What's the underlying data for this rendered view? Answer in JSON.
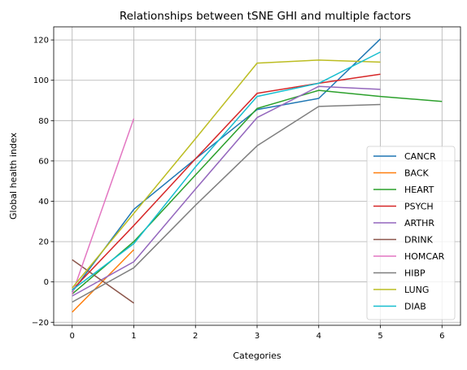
{
  "chart_data": {
    "type": "line",
    "title": "Relationships between tSNE GHI and multiple factors",
    "xlabel": "Categories",
    "ylabel": "Global health index",
    "xlim": [
      -0.3,
      6.3
    ],
    "ylim": [
      -21.5,
      126.5
    ],
    "xticks": [
      0,
      1,
      2,
      3,
      4,
      5,
      6
    ],
    "yticks": [
      -20,
      0,
      20,
      40,
      60,
      80,
      100,
      120
    ],
    "grid": true,
    "legend_position": "lower-right",
    "series": [
      {
        "name": "CANCR",
        "color": "#1f77b4",
        "x": [
          0,
          1,
          2,
          3,
          4,
          5
        ],
        "y": [
          -5,
          36,
          61,
          85.5,
          91,
          120.5
        ]
      },
      {
        "name": "BACK",
        "color": "#ff7f0e",
        "x": [
          0,
          1
        ],
        "y": [
          -15,
          16
        ]
      },
      {
        "name": "HEART",
        "color": "#2ca02c",
        "x": [
          0,
          1,
          2,
          3,
          4,
          5,
          6
        ],
        "y": [
          -6,
          20,
          53,
          86,
          95,
          92,
          89.5
        ]
      },
      {
        "name": "PSYCH",
        "color": "#d62728",
        "x": [
          0,
          1,
          2,
          3,
          4,
          5
        ],
        "y": [
          -4,
          28,
          61,
          93.5,
          98.5,
          103
        ]
      },
      {
        "name": "ARTHR",
        "color": "#9467bd",
        "x": [
          0,
          1,
          2,
          3,
          4,
          5
        ],
        "y": [
          -7,
          10,
          46,
          81.5,
          97,
          95.5
        ]
      },
      {
        "name": "DRINK",
        "color": "#8c564b",
        "x": [
          0,
          1
        ],
        "y": [
          11,
          -10.5
        ]
      },
      {
        "name": "HOMCAR",
        "color": "#e377c2",
        "x": [
          0,
          1
        ],
        "y": [
          -6,
          81
        ]
      },
      {
        "name": "HIBP",
        "color": "#7f7f7f",
        "x": [
          0,
          1,
          2,
          3,
          4,
          5
        ],
        "y": [
          -10,
          7,
          38,
          67.5,
          87,
          88
        ]
      },
      {
        "name": "LUNG",
        "color": "#bcbd22",
        "x": [
          0,
          1,
          2,
          3,
          4,
          5
        ],
        "y": [
          -3,
          34,
          71,
          108.5,
          110,
          109
        ]
      },
      {
        "name": "DIAB",
        "color": "#17becf",
        "x": [
          0,
          1,
          2,
          3,
          4,
          5
        ],
        "y": [
          -4,
          19,
          57,
          92,
          98.5,
          114
        ]
      }
    ]
  }
}
